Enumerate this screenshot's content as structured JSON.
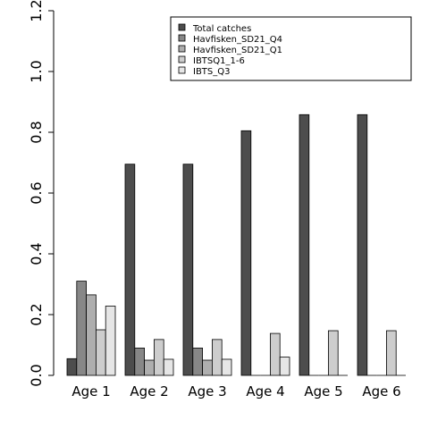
{
  "chart_data": {
    "type": "bar",
    "categories": [
      "Age 1",
      "Age 2",
      "Age 3",
      "Age 4",
      "Age 5",
      "Age 6"
    ],
    "series": [
      {
        "name": "Total catches",
        "color": "#4d4d4d",
        "values": [
          0.055,
          0.695,
          0.695,
          0.805,
          0.858,
          0.858
        ]
      },
      {
        "name": "Havfisken_SD21_Q4",
        "color": "#878787",
        "values": [
          0.31,
          0.09,
          0.09,
          0,
          0,
          0
        ]
      },
      {
        "name": "Havfisken_SD21_Q1",
        "color": "#aeaeae",
        "values": [
          0.265,
          0.05,
          0.05,
          0,
          0,
          0
        ]
      },
      {
        "name": "IBTSQ1_1-6",
        "color": "#cdcdcd",
        "values": [
          0.15,
          0.118,
          0.118,
          0.138,
          0.147,
          0.147
        ]
      },
      {
        "name": "IBTS_Q3",
        "color": "#e6e6e6",
        "values": [
          0.228,
          0.053,
          0.053,
          0.06,
          0,
          0
        ]
      }
    ],
    "yticks": [
      "0.0",
      "0.2",
      "0.4",
      "0.6",
      "0.8",
      "1.0",
      "1.2"
    ],
    "ylim": [
      0,
      1.2
    ],
    "legend_position": "top-right",
    "title": "",
    "xlabel": "",
    "ylabel": ""
  }
}
